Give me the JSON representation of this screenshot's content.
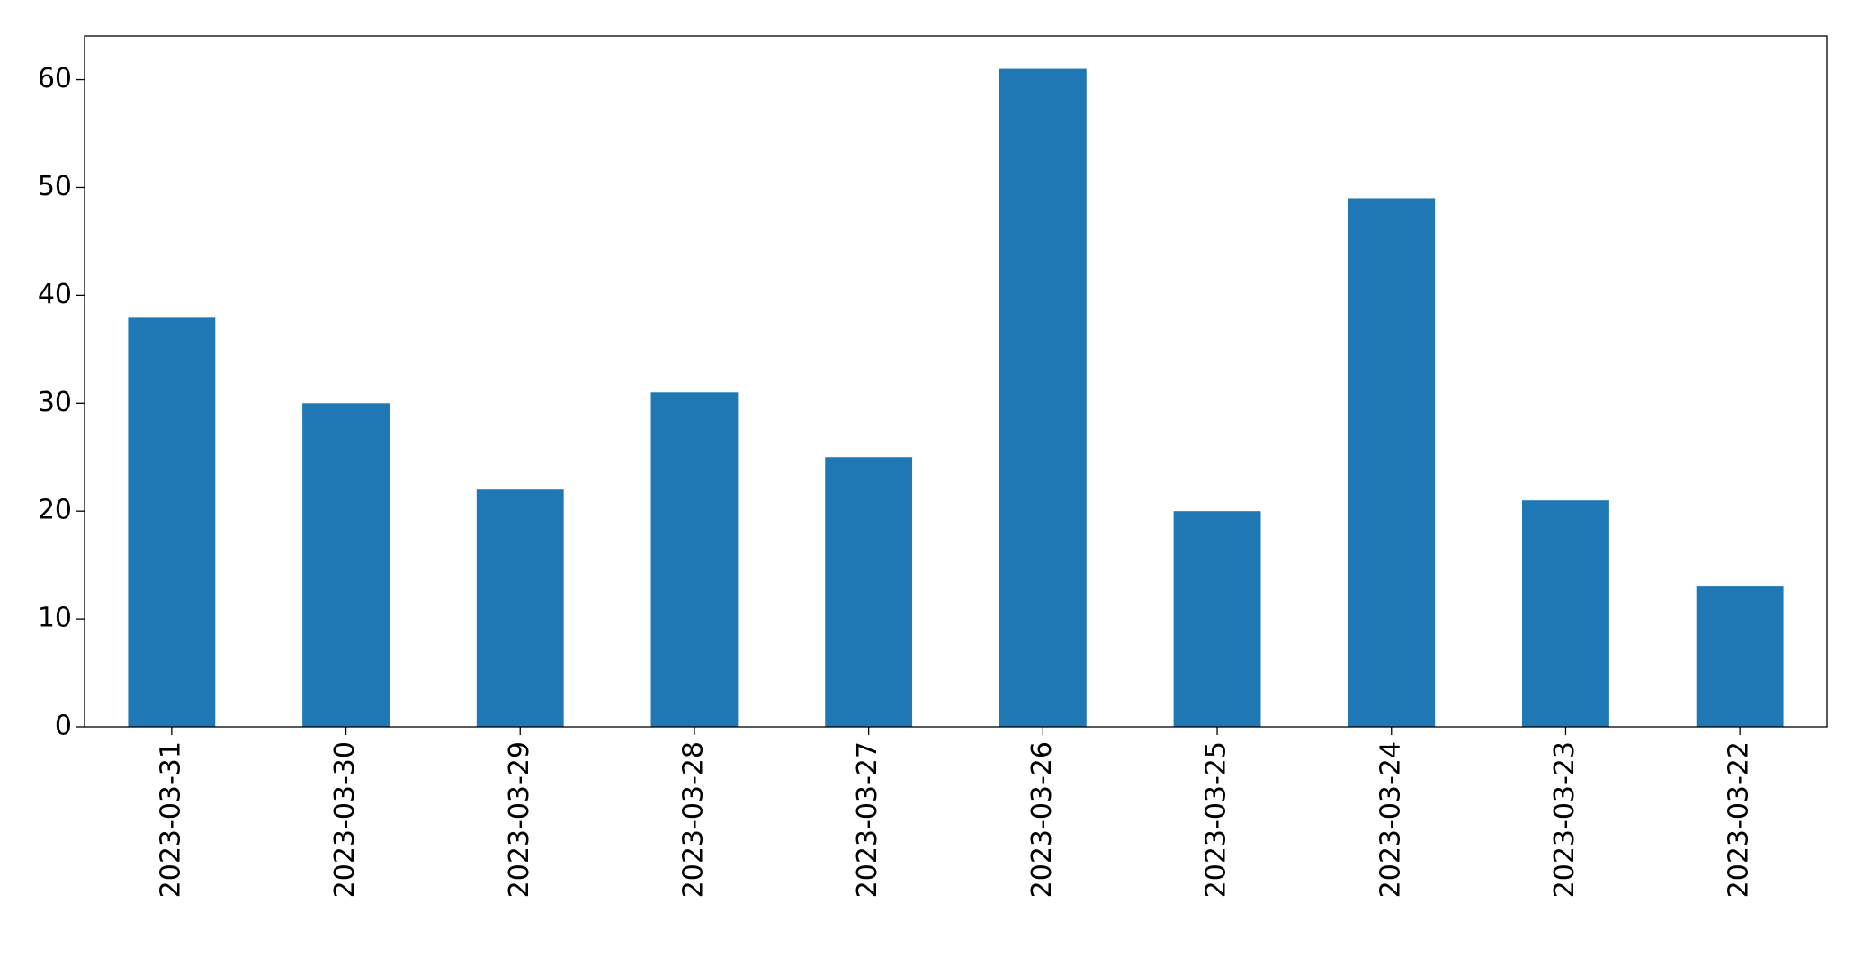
{
  "chart_data": {
    "type": "bar",
    "categories": [
      "2023-03-31",
      "2023-03-30",
      "2023-03-29",
      "2023-03-28",
      "2023-03-27",
      "2023-03-26",
      "2023-03-25",
      "2023-03-24",
      "2023-03-23",
      "2023-03-22"
    ],
    "values": [
      38,
      30,
      22,
      31,
      25,
      61,
      20,
      49,
      21,
      13
    ],
    "color": "#1f77b4",
    "ylim": [
      0,
      64.05
    ],
    "yticks": [
      0,
      10,
      20,
      30,
      40,
      50,
      60
    ],
    "grid": false
  }
}
